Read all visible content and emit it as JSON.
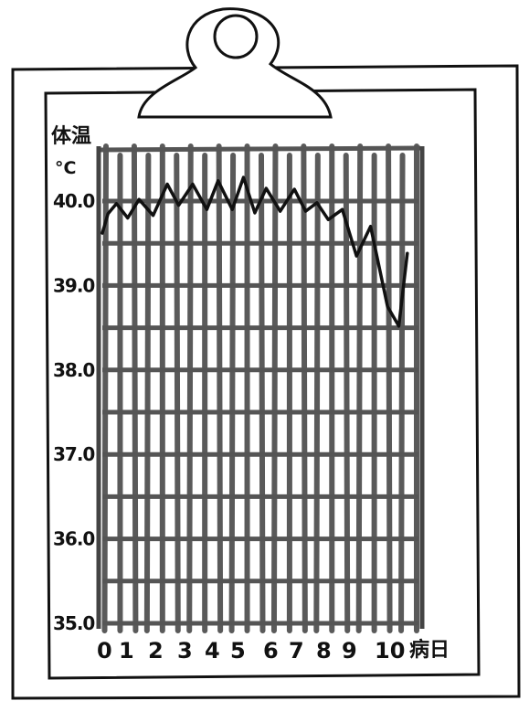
{
  "chart_data": {
    "type": "line",
    "ylabel": "体温",
    "yunit": "°C",
    "xlabel": "病日",
    "ylim": [
      35.0,
      40.0
    ],
    "yticks": [
      "40.0",
      "39.0",
      "38.0",
      "37.0",
      "36.0",
      "35.0"
    ],
    "xticks": [
      "0",
      "1",
      "2",
      "3",
      "4",
      "5",
      "6",
      "7",
      "8",
      "9",
      "10"
    ],
    "series": [
      {
        "x": [
          0.0,
          0.2,
          0.5,
          0.9,
          1.3,
          1.8,
          2.3,
          2.7,
          3.2,
          3.7,
          4.1,
          4.6,
          5.0,
          5.4,
          5.8,
          6.3,
          6.8,
          7.2,
          7.6,
          8.0,
          8.5,
          9.0,
          9.5,
          10.1,
          10.5,
          10.8
        ],
        "y": [
          39.62,
          39.85,
          39.97,
          39.8,
          40.02,
          39.83,
          40.2,
          39.95,
          40.2,
          39.9,
          40.24,
          39.9,
          40.28,
          39.86,
          40.15,
          39.88,
          40.14,
          39.88,
          39.98,
          39.78,
          39.9,
          39.35,
          39.7,
          38.75,
          38.52,
          39.38
        ]
      }
    ]
  }
}
